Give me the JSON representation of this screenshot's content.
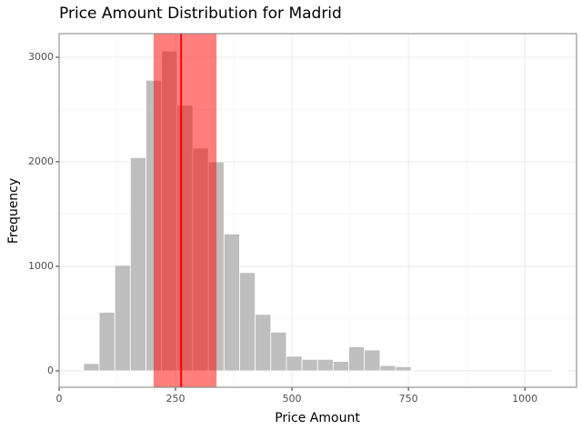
{
  "chart_data": {
    "type": "histogram",
    "title": "Price Amount Distribution for Madrid",
    "x_label": "Price Amount",
    "y_label": "Frequency",
    "bins": [
      52.5,
      86,
      119.5,
      153,
      186.5,
      220,
      253.5,
      287,
      320.5,
      354,
      387.5,
      421,
      454.5,
      488,
      521.5,
      555,
      588.5,
      622,
      655.5,
      689,
      722.5,
      756,
      789.5,
      823,
      856.5,
      890,
      923.5,
      957,
      990.5,
      1024,
      1057.5,
      1091
    ],
    "values": [
      70,
      560,
      1010,
      2040,
      2780,
      3060,
      2540,
      2130,
      2000,
      1310,
      940,
      540,
      370,
      140,
      110,
      110,
      90,
      230,
      200,
      50,
      40,
      0,
      0,
      0,
      0,
      0,
      0,
      0,
      0,
      0,
      5
    ],
    "color": "#bebebe",
    "band": [
      203,
      338
    ],
    "band_color": "#ff0000",
    "vline": 262,
    "vline_color": "#ff0000",
    "xlim": [
      0,
      1111
    ],
    "xticks": [
      0,
      250,
      500,
      750,
      1000
    ],
    "ylim": [
      -157,
      3226
    ],
    "yticks": [
      0,
      1000,
      2000,
      3000
    ],
    "grid": true
  }
}
